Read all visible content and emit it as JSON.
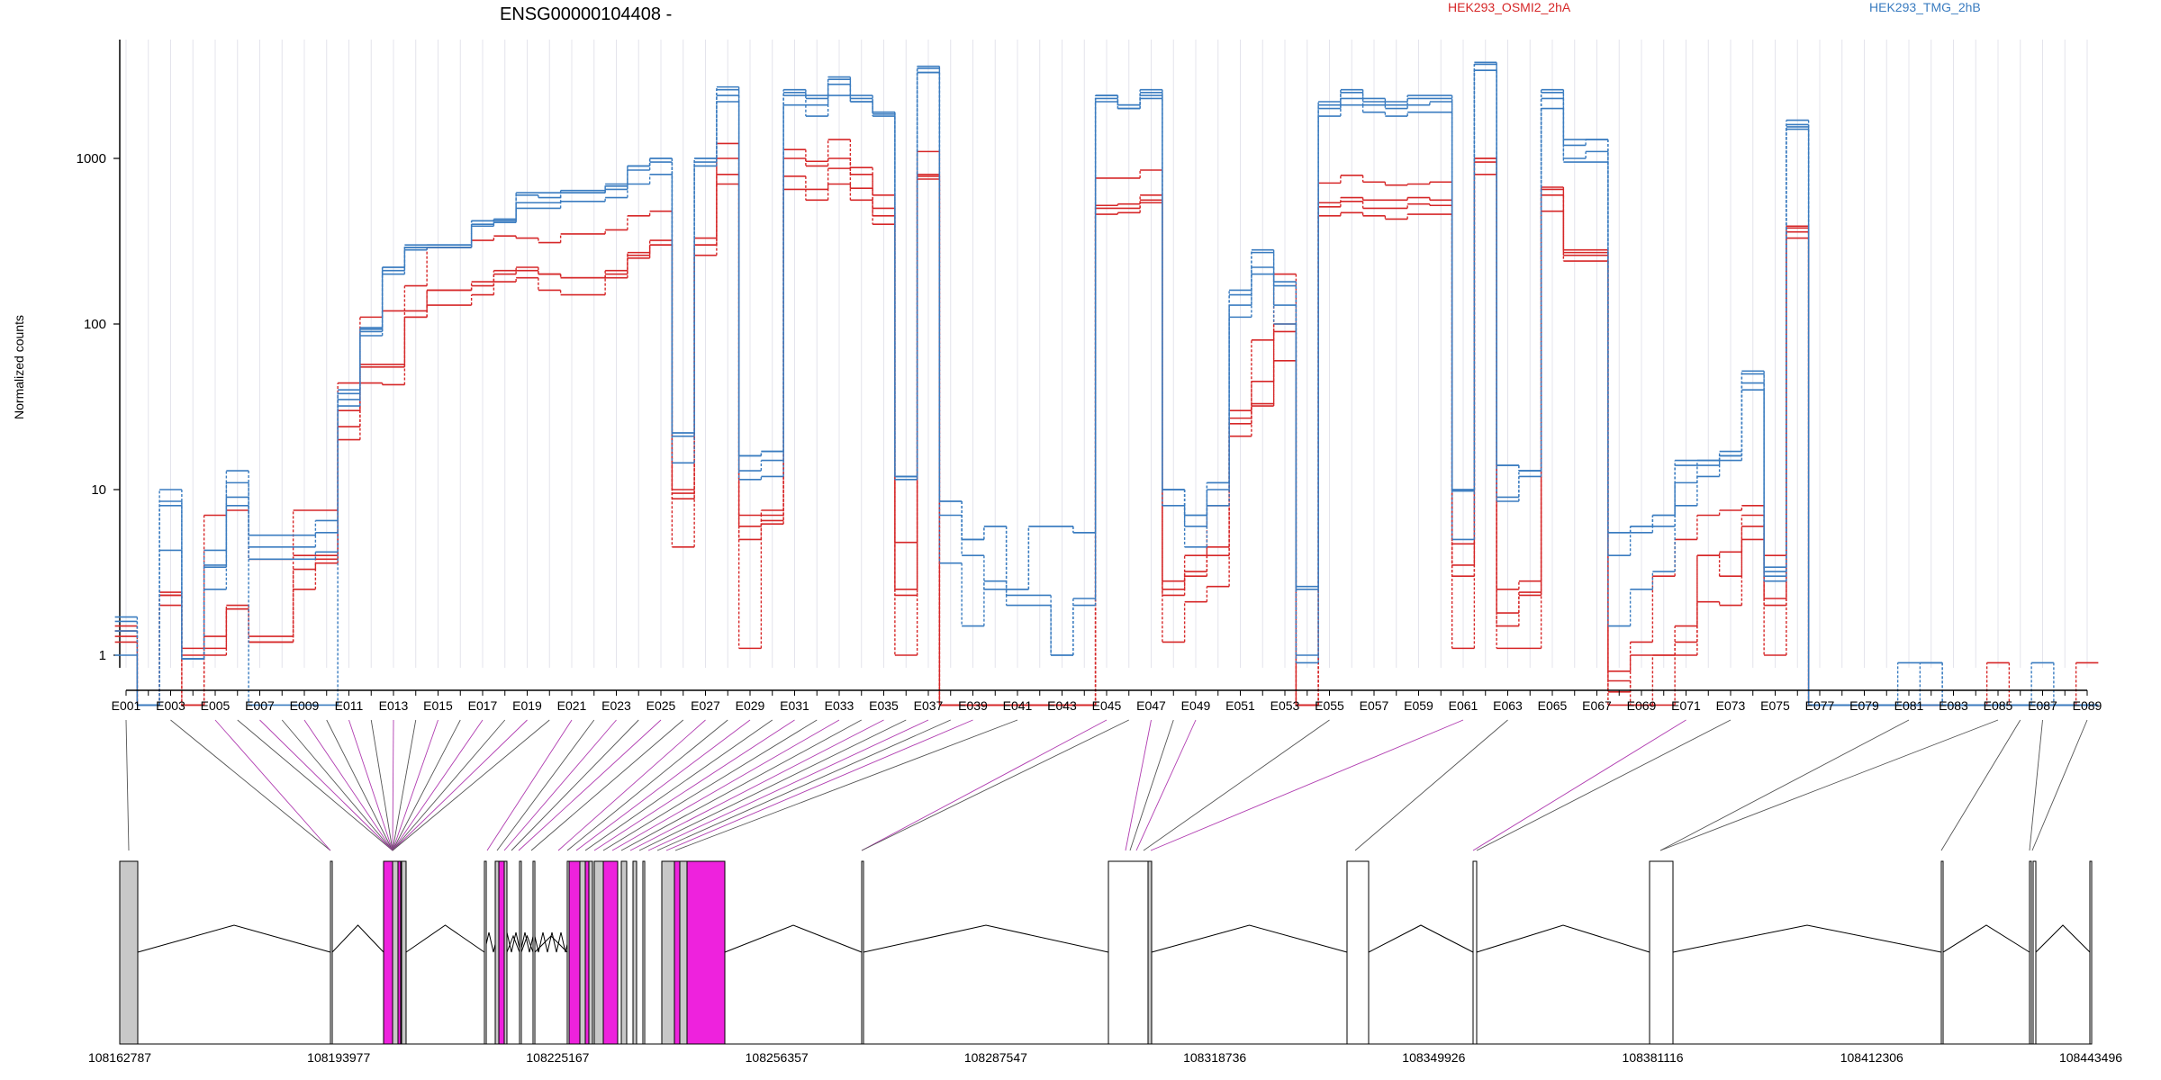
{
  "chart_data": {
    "type": "line",
    "title": "ENSG00000104408 -",
    "xlabel": "",
    "ylabel": "Normalized counts",
    "y_scale": "log",
    "ylim": [
      0.5,
      5000
    ],
    "yticks": [
      1,
      10,
      100,
      1000
    ],
    "ytick_labels": [
      "1",
      "10",
      "100",
      "1000"
    ],
    "grid": "vertical lines per exon bin",
    "legend_placement": "top",
    "legend": [
      {
        "label": "HEK293_OSMI2_2hA",
        "color": "#d62728"
      },
      {
        "label": "HEK293_TMG_2hB",
        "color": "#3a7cc0"
      }
    ],
    "x_categories": [
      "E001",
      "E002",
      "E003",
      "E004",
      "E005",
      "E006",
      "E007",
      "E008",
      "E009",
      "E010",
      "E011",
      "E012",
      "E013",
      "E014",
      "E015",
      "E016",
      "E017",
      "E018",
      "E019",
      "E020",
      "E021",
      "E022",
      "E023",
      "E024",
      "E025",
      "E026",
      "E027",
      "E028",
      "E029",
      "E030",
      "E031",
      "E032",
      "E033",
      "E034",
      "E035",
      "E036",
      "E037",
      "E038",
      "E039",
      "E040",
      "E041",
      "E042",
      "E043",
      "E044",
      "E045",
      "E046",
      "E047",
      "E048",
      "E049",
      "E050",
      "E051",
      "E052",
      "E053",
      "E054",
      "E055",
      "E056",
      "E057",
      "E058",
      "E059",
      "E060",
      "E061",
      "E062",
      "E063",
      "E064",
      "E065",
      "E066",
      "E067",
      "E068",
      "E069",
      "E070",
      "E071",
      "E072",
      "E073",
      "E074",
      "E075",
      "E076",
      "E077",
      "E078",
      "E079",
      "E080",
      "E081",
      "E082",
      "E083",
      "E084",
      "E085",
      "E086",
      "E087",
      "E088",
      "E089"
    ],
    "x_tick_labels": [
      "E001",
      "E003",
      "E005",
      "E007",
      "E009",
      "E011",
      "E013",
      "E015",
      "E017",
      "E019",
      "E021",
      "E023",
      "E025",
      "E027",
      "E029",
      "E031",
      "E033",
      "E035",
      "E037",
      "E039",
      "E041",
      "E043",
      "E045",
      "E047",
      "E049",
      "E051",
      "E053",
      "E055",
      "E057",
      "E059",
      "E061",
      "E063",
      "E065",
      "E067",
      "E069",
      "E071",
      "E073",
      "E075",
      "E077",
      "E079",
      "E081",
      "E083",
      "E085",
      "E087",
      "E089"
    ],
    "series": [
      {
        "group": "HEK293_OSMI2_2hA",
        "color": "#d62728",
        "values": [
          1.4,
          0.5,
          2.3,
          1.0,
          1.3,
          2.0,
          1.3,
          1.3,
          4.0,
          4.0,
          20,
          44,
          43,
          110,
          130,
          130,
          150,
          180,
          190,
          160,
          150,
          150,
          190,
          250,
          300,
          4.5,
          300,
          700,
          1.1,
          6.2,
          650,
          560,
          700,
          560,
          400,
          1.0,
          750,
          0.5,
          0.5,
          0.5,
          0.5,
          0.5,
          0.5,
          0.5,
          460,
          470,
          540,
          1.2,
          2.1,
          2.6,
          21,
          33,
          60,
          0.5,
          450,
          470,
          450,
          430,
          460,
          460,
          1.1,
          800,
          1.1,
          1.1,
          480,
          240,
          240,
          0.5,
          0.5,
          0.5,
          1.0,
          2.1,
          2.0,
          5.0,
          1.0,
          330,
          0.5,
          0.5,
          0.5,
          0.5,
          0.5,
          0.5,
          0.5,
          0.5,
          0.5,
          0.5,
          0.5,
          0.5,
          0.5
        ]
      },
      {
        "group": "HEK293_OSMI2_2hA",
        "color": "#d62728",
        "values": [
          1.2,
          0.5,
          2.3,
          0.5,
          1.0,
          1.9,
          1.2,
          1.2,
          2.5,
          3.6,
          24,
          55,
          55,
          110,
          160,
          160,
          180,
          200,
          210,
          200,
          190,
          190,
          200,
          270,
          320,
          8.8,
          260,
          800,
          5.0,
          7.0,
          780,
          650,
          870,
          660,
          450,
          2.3,
          780,
          0.5,
          0.5,
          0.5,
          0.5,
          0.5,
          0.5,
          0.5,
          500,
          500,
          600,
          2.3,
          3.0,
          4.0,
          25,
          32,
          90,
          0.5,
          510,
          550,
          500,
          500,
          530,
          520,
          3.0,
          950,
          1.5,
          2.3,
          600,
          260,
          260,
          0.6,
          1.0,
          1.0,
          1.5,
          4.0,
          3.0,
          6.0,
          2.0,
          360,
          0.5,
          0.5,
          0.5,
          0.5,
          0.5,
          0.5,
          0.5,
          0.5,
          0.5,
          0.5,
          0.5,
          0.5,
          0.5
        ]
      },
      {
        "group": "HEK293_OSMI2_2hA",
        "color": "#d62728",
        "values": [
          1.3,
          0.5,
          2.0,
          0.5,
          1.1,
          1.9,
          1.2,
          1.2,
          3.3,
          3.8,
          30,
          57,
          57,
          120,
          160,
          160,
          170,
          210,
          220,
          200,
          190,
          190,
          210,
          260,
          300,
          9.5,
          300,
          1000,
          6.0,
          6.5,
          1000,
          900,
          1000,
          800,
          500,
          2.5,
          800,
          0.5,
          0.5,
          0.5,
          0.5,
          0.5,
          0.5,
          0.5,
          520,
          530,
          560,
          2.5,
          3.2,
          4.5,
          27,
          45,
          100,
          0.5,
          540,
          580,
          560,
          560,
          580,
          560,
          3.5,
          1000,
          1.8,
          2.4,
          650,
          270,
          270,
          0.7,
          0.5,
          1.0,
          1.2,
          4.0,
          4.2,
          7.0,
          2.2,
          380,
          0.5,
          0.5,
          0.5,
          0.5,
          0.5,
          0.5,
          0.5,
          0.5,
          0.5,
          0.5,
          0.5,
          0.5,
          0.5
        ]
      },
      {
        "group": "HEK293_OSMI2_2hA",
        "color": "#d62728",
        "values": [
          1.5,
          0.5,
          2.4,
          1.1,
          7.0,
          7.5,
          3.8,
          3.8,
          7.5,
          7.5,
          44,
          110,
          120,
          170,
          290,
          290,
          320,
          340,
          330,
          310,
          350,
          350,
          370,
          450,
          480,
          10,
          330,
          1230,
          7.0,
          7.5,
          1130,
          960,
          1300,
          880,
          600,
          4.8,
          1100,
          0.5,
          0.5,
          0.5,
          0.5,
          0.5,
          0.5,
          0.5,
          760,
          760,
          850,
          2.8,
          4.0,
          8.0,
          30,
          80,
          200,
          0.5,
          710,
          790,
          720,
          690,
          700,
          720,
          4.7,
          1000,
          2.5,
          2.8,
          670,
          280,
          280,
          0.8,
          1.2,
          3.0,
          5.0,
          7.0,
          7.5,
          8.0,
          4.0,
          390,
          0.5,
          0.5,
          0.5,
          0.5,
          0.5,
          0.5,
          0.5,
          0.5,
          0.9,
          0.5,
          0.5,
          0.5,
          0.9
        ]
      },
      {
        "group": "HEK293_TMG_2hB",
        "color": "#3a7cc0",
        "values": [
          1.0,
          0.5,
          4.3,
          0.95,
          2.5,
          8.0,
          3.8,
          3.8,
          3.8,
          4.2,
          35,
          90,
          210,
          290,
          290,
          290,
          400,
          420,
          500,
          500,
          550,
          550,
          580,
          700,
          800,
          14.5,
          900,
          2200,
          11.5,
          12,
          2100,
          1800,
          2400,
          2200,
          1800,
          12,
          3300,
          3.6,
          1.5,
          2.8,
          2.0,
          2.0,
          1.0,
          2.0,
          2200,
          2000,
          2300,
          8.0,
          4.5,
          8.0,
          110,
          200,
          100,
          1.0,
          1800,
          2100,
          1900,
          1800,
          1900,
          1900,
          5.0,
          3400,
          8.5,
          12,
          2000,
          950,
          950,
          1.5,
          2.5,
          3.2,
          8.0,
          12,
          15,
          40,
          2.8,
          1500,
          0.5,
          0.5,
          0.5,
          0.5,
          0.5,
          0.5,
          0.5,
          0.5,
          0.5,
          0.5,
          0.5,
          0.5,
          0.5
        ]
      },
      {
        "group": "HEK293_TMG_2hB",
        "color": "#3a7cc0",
        "values": [
          1.7,
          0.5,
          8.0,
          0.95,
          3.4,
          9.0,
          4.5,
          4.5,
          4.5,
          5.5,
          38,
          93,
          220,
          280,
          300,
          300,
          420,
          420,
          540,
          540,
          620,
          620,
          650,
          850,
          950,
          21,
          950,
          2400,
          13,
          15,
          2400,
          2100,
          2800,
          2200,
          1850,
          11.5,
          3300,
          7.0,
          4.0,
          2.5,
          2.3,
          2.3,
          1.0,
          2.2,
          2300,
          2000,
          2400,
          10,
          6.0,
          10,
          130,
          220,
          130,
          0.9,
          2000,
          2300,
          2100,
          2000,
          2100,
          2200,
          9.8,
          3400,
          9.0,
          13,
          2300,
          1000,
          1100,
          4.0,
          5.5,
          6.0,
          11,
          14,
          16,
          44,
          3.0,
          1550,
          0.5,
          0.5,
          0.5,
          0.5,
          0.5,
          0.5,
          0.5,
          0.5,
          0.5,
          0.5,
          0.5,
          0.5,
          0.5
        ]
      },
      {
        "group": "HEK293_TMG_2hB",
        "color": "#3a7cc0",
        "values": [
          1.6,
          0.5,
          10,
          0.95,
          4.3,
          13,
          5.3,
          5.3,
          5.3,
          6.5,
          40,
          95,
          220,
          300,
          300,
          300,
          420,
          430,
          600,
          580,
          640,
          640,
          680,
          900,
          1000,
          22,
          1000,
          2600,
          16,
          17,
          2600,
          2300,
          3000,
          2300,
          1900,
          12,
          3500,
          8.5,
          5.0,
          6.0,
          2.5,
          6.0,
          6.0,
          5.5,
          2400,
          2100,
          2500,
          10,
          7.0,
          11,
          150,
          270,
          170,
          2.5,
          2100,
          2500,
          2200,
          2100,
          2300,
          2300,
          10,
          3700,
          14,
          13,
          2500,
          1200,
          1300,
          5.5,
          6.0,
          7.0,
          14,
          15,
          16,
          50,
          3.2,
          1600,
          0.5,
          0.5,
          0.5,
          0.5,
          0.5,
          0.9,
          0.5,
          0.5,
          0.5,
          0.5,
          0.5,
          0.5,
          0.5
        ]
      },
      {
        "group": "HEK293_TMG_2hB",
        "color": "#3a7cc0",
        "values": [
          1.4,
          0.5,
          8.5,
          0.95,
          3.5,
          11,
          0.5,
          0.5,
          0.5,
          0.5,
          32,
          85,
          200,
          290,
          290,
          290,
          390,
          410,
          620,
          620,
          620,
          620,
          700,
          900,
          1000,
          22,
          1000,
          2700,
          16,
          17,
          2500,
          2400,
          3100,
          2400,
          1900,
          12,
          3600,
          8.5,
          5.0,
          6.0,
          2.5,
          6.0,
          6.0,
          5.5,
          2400,
          2100,
          2600,
          10,
          7.0,
          11,
          160,
          280,
          180,
          2.6,
          2200,
          2600,
          2300,
          2200,
          2400,
          2400,
          10,
          3800,
          14,
          13,
          2600,
          1300,
          1300,
          5.5,
          6.0,
          7.0,
          15,
          15,
          17,
          52,
          3.4,
          1700,
          0.5,
          0.5,
          0.5,
          0.5,
          0.9,
          0.9,
          0.5,
          0.5,
          0.5,
          0.5,
          0.9,
          0.5,
          0.5
        ]
      }
    ],
    "gene_model": {
      "genomic_tick_labels": [
        "108162787",
        "108193977",
        "108225167",
        "108256357",
        "108287547",
        "108318736",
        "108349926",
        "108381116",
        "108412306",
        "108443496"
      ],
      "exon_colors": {
        "counted": "#c8c8c8",
        "highlighted": "#ee22dd",
        "outline": "#000000"
      }
    }
  }
}
